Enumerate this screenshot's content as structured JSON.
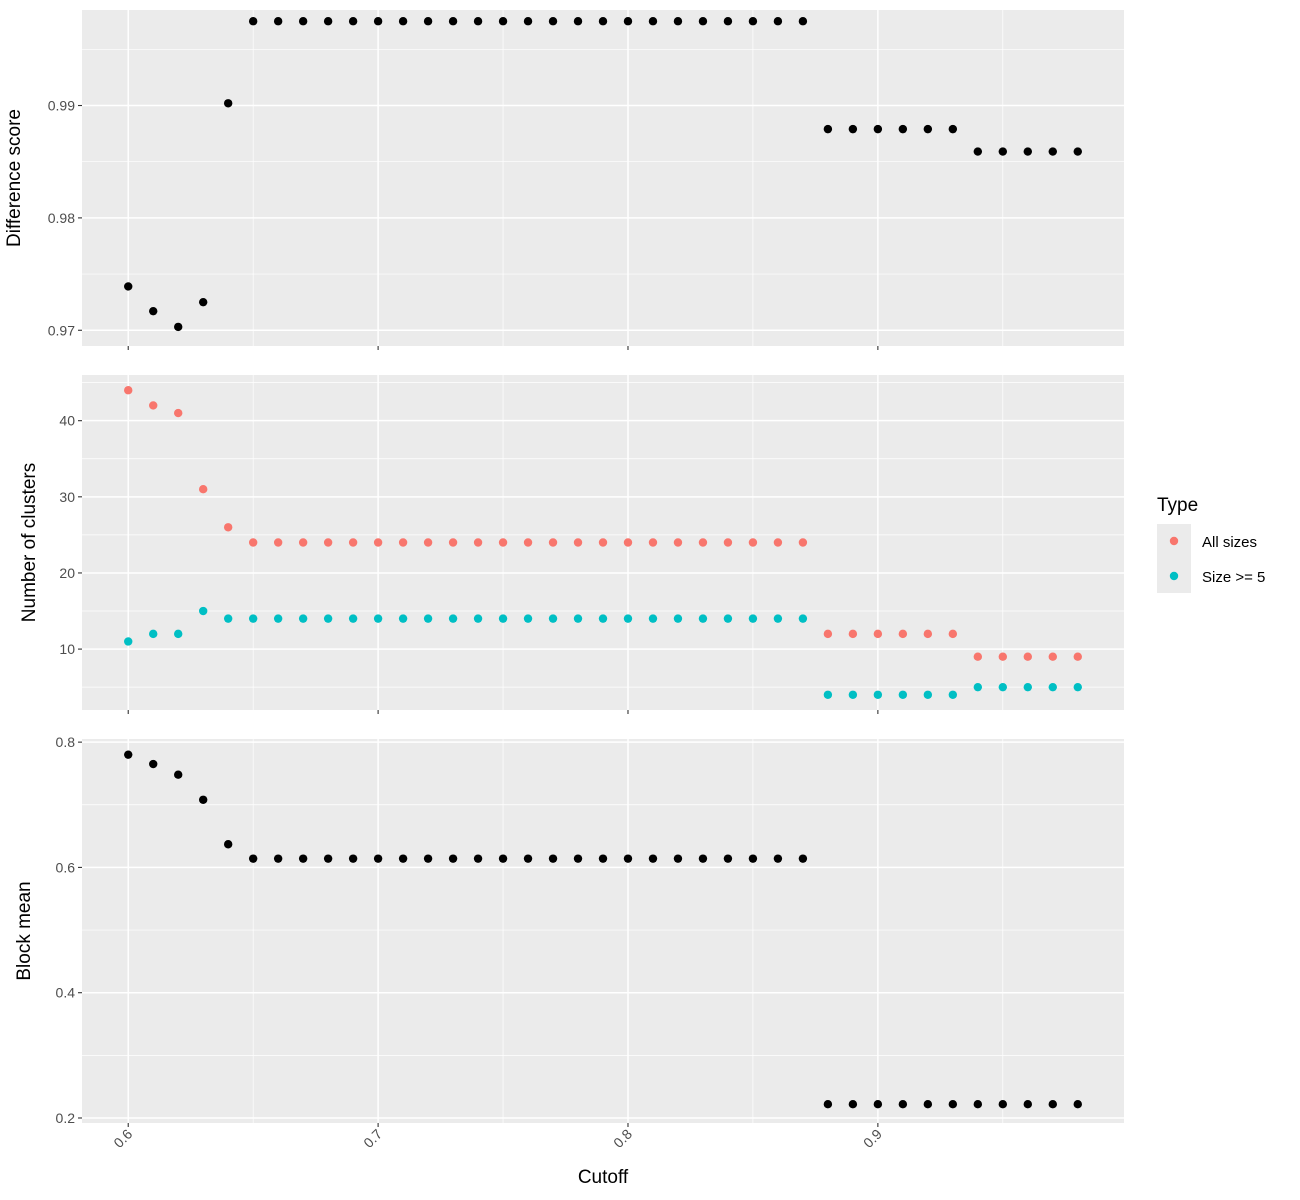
{
  "chart_data": {
    "type": "scatter",
    "x_label": "Cutoff",
    "x_ticks": [
      0.6,
      0.7,
      0.8,
      0.9
    ],
    "x_tick_labels": [
      "0.6",
      "0.7",
      "0.8",
      "0.9"
    ],
    "x_range": [
      0.5815,
      0.9985
    ],
    "x": [
      0.6,
      0.61,
      0.62,
      0.63,
      0.64,
      0.65,
      0.66,
      0.67,
      0.68,
      0.69,
      0.7,
      0.71,
      0.72,
      0.73,
      0.74,
      0.75,
      0.76,
      0.77,
      0.78,
      0.79,
      0.8,
      0.81,
      0.82,
      0.83,
      0.84,
      0.85,
      0.86,
      0.87,
      0.88,
      0.89,
      0.9,
      0.91,
      0.92,
      0.93,
      0.94,
      0.95,
      0.96,
      0.97,
      0.98
    ],
    "grid": true,
    "legend_position": "right",
    "panels": [
      {
        "ylabel": "Difference score",
        "ylim": [
          0.9686,
          0.9985
        ],
        "y_ticks": [
          0.97,
          0.98,
          0.99
        ],
        "y_tick_labels": [
          "0.97",
          "0.98",
          "0.99"
        ],
        "series": [
          {
            "color": "#000000",
            "values": [
              0.9739,
              0.9717,
              0.9703,
              0.9725,
              0.9902,
              0.9975,
              0.9975,
              0.9975,
              0.9975,
              0.9975,
              0.9975,
              0.9975,
              0.9975,
              0.9975,
              0.9975,
              0.9975,
              0.9975,
              0.9975,
              0.9975,
              0.9975,
              0.9975,
              0.9975,
              0.9975,
              0.9975,
              0.9975,
              0.9975,
              0.9975,
              0.9975,
              0.9879,
              0.9879,
              0.9879,
              0.9879,
              0.9879,
              0.9879,
              0.9859,
              0.9859,
              0.9859,
              0.9859,
              0.9859
            ]
          }
        ]
      },
      {
        "ylabel": "Number of clusters",
        "ylim": [
          2,
          46
        ],
        "y_ticks": [
          10,
          20,
          30,
          40
        ],
        "y_tick_labels": [
          "10",
          "20",
          "30",
          "40"
        ],
        "series": [
          {
            "name": "All sizes",
            "color": "#F8766D",
            "values": [
              44,
              42,
              41,
              31,
              26,
              24,
              24,
              24,
              24,
              24,
              24,
              24,
              24,
              24,
              24,
              24,
              24,
              24,
              24,
              24,
              24,
              24,
              24,
              24,
              24,
              24,
              24,
              24,
              12,
              12,
              12,
              12,
              12,
              12,
              9,
              9,
              9,
              9,
              9
            ]
          },
          {
            "name": "Size >= 5",
            "color": "#00BFC4",
            "values": [
              11,
              12,
              12,
              15,
              14,
              14,
              14,
              14,
              14,
              14,
              14,
              14,
              14,
              14,
              14,
              14,
              14,
              14,
              14,
              14,
              14,
              14,
              14,
              14,
              14,
              14,
              14,
              14,
              4,
              4,
              4,
              4,
              4,
              4,
              5,
              5,
              5,
              5,
              5
            ]
          }
        ]
      },
      {
        "ylabel": "Block mean",
        "ylim": [
          0.192,
          0.805
        ],
        "y_ticks": [
          0.2,
          0.4,
          0.6,
          0.8
        ],
        "y_tick_labels": [
          "0.2",
          "0.4",
          "0.6",
          "0.8"
        ],
        "series": [
          {
            "color": "#000000",
            "values": [
              0.78,
              0.765,
              0.748,
              0.708,
              0.637,
              0.614,
              0.614,
              0.614,
              0.614,
              0.614,
              0.614,
              0.614,
              0.614,
              0.614,
              0.614,
              0.614,
              0.614,
              0.614,
              0.614,
              0.614,
              0.614,
              0.614,
              0.614,
              0.614,
              0.614,
              0.614,
              0.614,
              0.614,
              0.222,
              0.222,
              0.222,
              0.222,
              0.222,
              0.222,
              0.222,
              0.222,
              0.222,
              0.222,
              0.222
            ]
          }
        ]
      }
    ],
    "legend": {
      "title": "Type",
      "entries": [
        {
          "label": "All sizes",
          "color": "#F8766D"
        },
        {
          "label": "Size >= 5",
          "color": "#00BFC4"
        }
      ]
    }
  }
}
